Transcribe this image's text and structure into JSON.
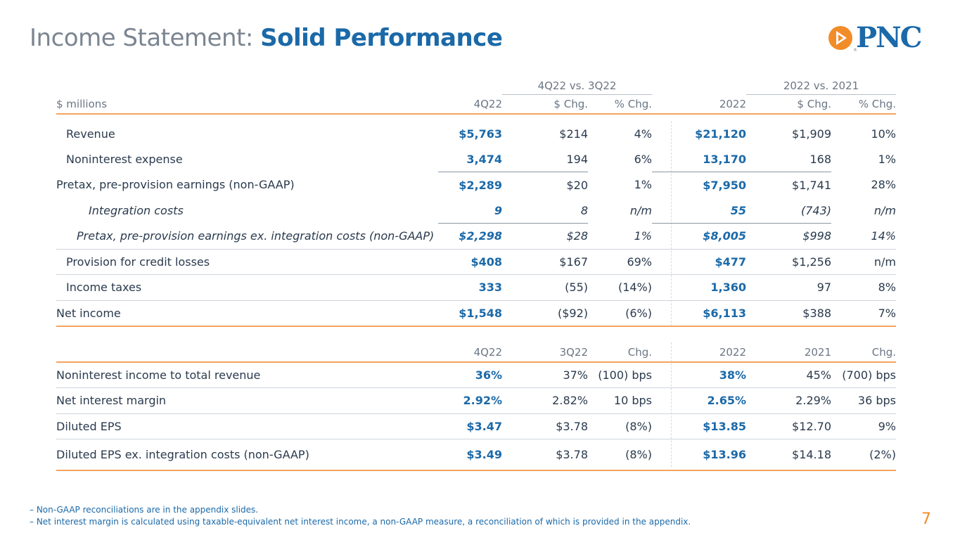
{
  "title": {
    "light": "Income Statement:",
    "bold": "Solid Performance"
  },
  "logo": {
    "text": "PNC",
    "registered": "®"
  },
  "colors": {
    "accent_blue": "#1b69a8",
    "accent_orange": "#f28c28",
    "rule_orange": "#f4a460",
    "gray_text": "#7b8591"
  },
  "table1": {
    "group_headers": {
      "quarter": "4Q22 vs. 3Q22",
      "year": "2022 vs. 2021"
    },
    "columns": [
      "$ millions",
      "4Q22",
      "$ Chg.",
      "% Chg.",
      "2022",
      "$ Chg.",
      "% Chg."
    ],
    "rows": [
      {
        "label": "Revenue",
        "v": [
          "$5,763",
          "$214",
          "4%",
          "$21,120",
          "$1,909",
          "10%"
        ]
      },
      {
        "label": "Noninterest expense",
        "v": [
          "3,474",
          "194",
          "6%",
          "13,170",
          "168",
          "1%"
        ]
      },
      {
        "label": "Pretax, pre-provision earnings (non-GAAP)",
        "v": [
          "$2,289",
          "$20",
          "1%",
          "$7,950",
          "$1,741",
          "28%"
        ]
      },
      {
        "label": "Integration costs",
        "v": [
          "9",
          "8",
          "n/m",
          "55",
          "(743)",
          "n/m"
        ]
      },
      {
        "label": "Pretax, pre-provision earnings ex. integration costs (non-GAAP)",
        "v": [
          "$2,298",
          "$28",
          "1%",
          "$8,005",
          "$998",
          "14%"
        ]
      },
      {
        "label": "Provision for credit losses",
        "v": [
          "$408",
          "$167",
          "69%",
          "$477",
          "$1,256",
          "n/m"
        ]
      },
      {
        "label": "Income taxes",
        "v": [
          "333",
          "(55)",
          "(14%)",
          "1,360",
          "97",
          "8%"
        ]
      },
      {
        "label": "Net income",
        "v": [
          "$1,548",
          "($92)",
          "(6%)",
          "$6,113",
          "$388",
          "7%"
        ]
      }
    ]
  },
  "table2": {
    "columns": [
      "",
      "4Q22",
      "3Q22",
      "Chg.",
      "2022",
      "2021",
      "Chg."
    ],
    "rows": [
      {
        "label": "Noninterest income to total revenue",
        "v": [
          "36%",
          "37%",
          "(100) bps",
          "38%",
          "45%",
          "(700) bps"
        ]
      },
      {
        "label": "Net interest margin",
        "v": [
          "2.92%",
          "2.82%",
          "10 bps",
          "2.65%",
          "2.29%",
          "36 bps"
        ]
      },
      {
        "label": "Diluted EPS",
        "v": [
          "$3.47",
          "$3.78",
          "(8%)",
          "$13.85",
          "$12.70",
          "9%"
        ]
      },
      {
        "label": "Diluted EPS ex. integration costs (non-GAAP)",
        "v": [
          "$3.49",
          "$3.78",
          "(8%)",
          "$13.96",
          "$14.18",
          "(2%)"
        ]
      }
    ]
  },
  "footnotes": [
    "–  Non-GAAP reconciliations are in the appendix slides.",
    "–  Net interest margin is calculated using taxable-equivalent net interest income, a non-GAAP measure, a reconciliation of which is provided in the appendix."
  ],
  "page_number": "7"
}
